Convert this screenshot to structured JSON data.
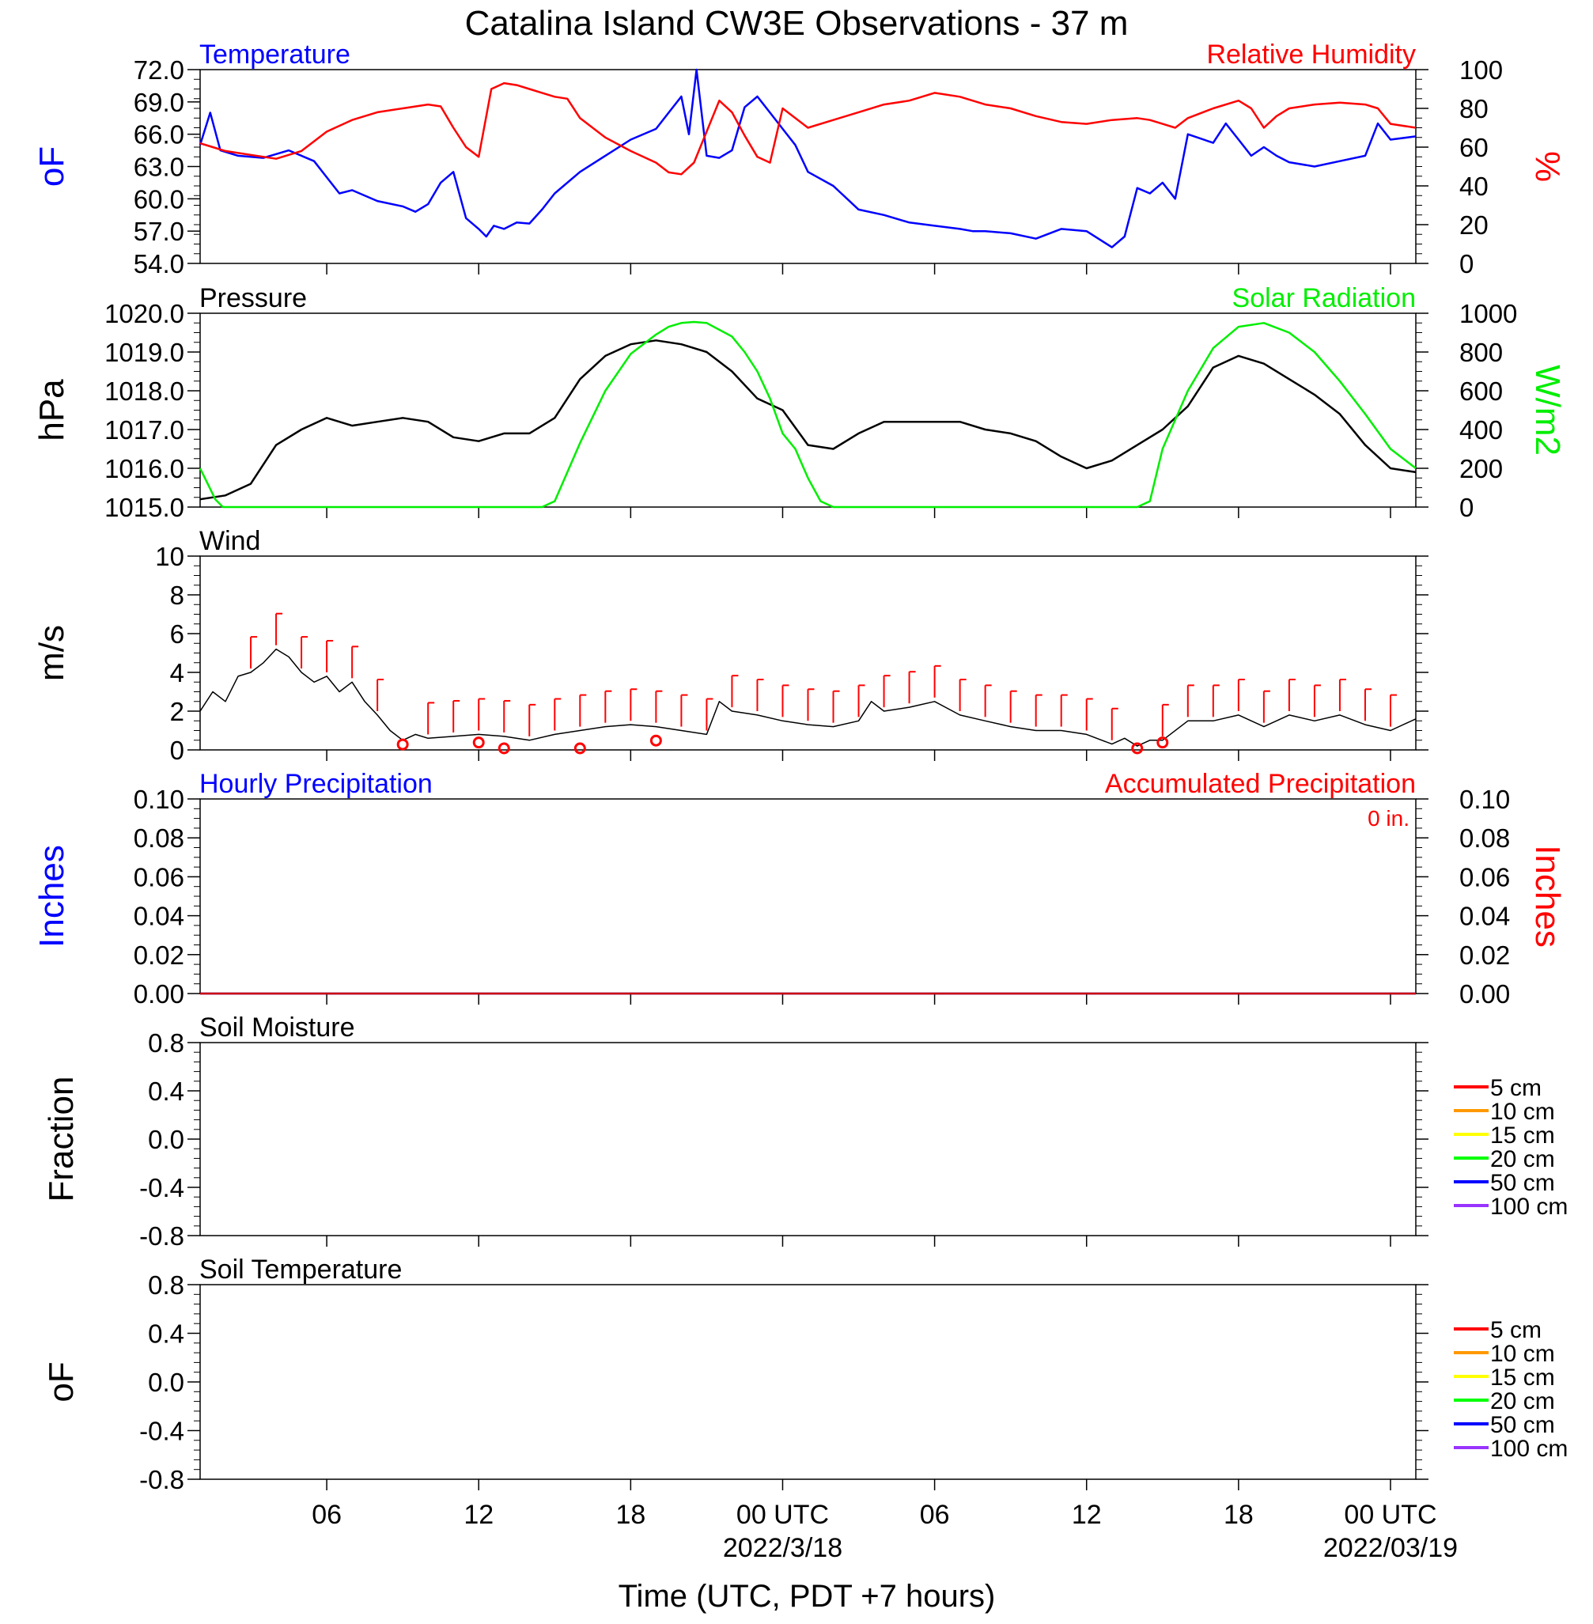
{
  "title": "Catalina Island CW3E Observations - 37 m",
  "x_axis": {
    "label": "Time (UTC, PDT +7 hours)",
    "range_hours": [
      0,
      48
    ],
    "ticks": [
      {
        "hour": 5,
        "label": "06",
        "date": ""
      },
      {
        "hour": 11,
        "label": "12",
        "date": ""
      },
      {
        "hour": 17,
        "label": "18",
        "date": ""
      },
      {
        "hour": 23,
        "label": "00 UTC",
        "date": "2022/3/18"
      },
      {
        "hour": 29,
        "label": "06",
        "date": ""
      },
      {
        "hour": 35,
        "label": "12",
        "date": ""
      },
      {
        "hour": 41,
        "label": "18",
        "date": ""
      },
      {
        "hour": 47,
        "label": "00 UTC",
        "date": "2022/03/19"
      }
    ]
  },
  "chart_data": [
    {
      "type": "line",
      "panel": "temperature-humidity",
      "left_title": "Temperature",
      "right_title": "Relative Humidity",
      "ylabel_left": "oF",
      "ylabel_right": "%",
      "ylim_left": [
        54,
        72
      ],
      "ylim_right": [
        0,
        100
      ],
      "yticks_left": [
        "72.0",
        "69.0",
        "66.0",
        "63.0",
        "60.0",
        "57.0",
        "54.0"
      ],
      "yticks_right": [
        "100",
        "80",
        "60",
        "40",
        "20",
        "0"
      ],
      "series": [
        {
          "name": "Temperature",
          "axis": "left",
          "color": "#0000ff",
          "x": [
            0,
            0.4,
            0.8,
            1.5,
            2.5,
            3.5,
            4.5,
            5,
            5.5,
            6,
            7,
            8,
            8.5,
            9,
            9.5,
            10,
            10.5,
            11,
            11.3,
            11.6,
            12,
            12.5,
            13,
            13.5,
            14,
            15,
            16,
            17,
            18,
            18.5,
            19,
            19.3,
            19.6,
            20,
            20.5,
            21,
            21.5,
            22,
            22.5,
            23,
            23.5,
            24,
            25,
            26,
            27,
            28,
            29,
            30,
            30.5,
            31,
            32,
            33,
            34,
            35,
            36,
            36.5,
            37,
            37.5,
            38,
            38.5,
            39,
            40,
            40.5,
            41,
            41.5,
            42,
            42.5,
            43,
            44,
            45,
            46,
            46.5,
            47,
            48
          ],
          "y": [
            65,
            68,
            64.5,
            64,
            63.8,
            64.5,
            63.5,
            62,
            60.5,
            60.8,
            59.8,
            59.3,
            58.8,
            59.5,
            61.5,
            62.5,
            58.2,
            57.2,
            56.5,
            57.5,
            57.2,
            57.8,
            57.7,
            59,
            60.5,
            62.5,
            64,
            65.5,
            66.5,
            68,
            69.5,
            66,
            72,
            64,
            63.8,
            64.5,
            68.5,
            69.5,
            68,
            66.5,
            65,
            62.5,
            61.2,
            59,
            58.5,
            57.8,
            57.5,
            57.2,
            57,
            57,
            56.8,
            56.3,
            57.2,
            57,
            55.5,
            56.5,
            61,
            60.5,
            61.5,
            60,
            66,
            65.2,
            67,
            65.5,
            64,
            64.8,
            64,
            63.4,
            63,
            63.5,
            64,
            67,
            65.5,
            65.8
          ]
        },
        {
          "name": "Relative Humidity",
          "axis": "right",
          "color": "#ff0000",
          "x": [
            0,
            0.5,
            1,
            2,
            3,
            4,
            5,
            6,
            7,
            8,
            9,
            9.5,
            10,
            10.5,
            11,
            11.5,
            12,
            12.5,
            13,
            13.5,
            14,
            14.5,
            15,
            16,
            17,
            18,
            18.5,
            19,
            19.5,
            20,
            20.5,
            21,
            21.5,
            22,
            22.5,
            23,
            24,
            25,
            26,
            27,
            28,
            29,
            30,
            30.5,
            31,
            32,
            33,
            34,
            35,
            36,
            37,
            37.5,
            38,
            38.5,
            39,
            40,
            41,
            41.5,
            42,
            42.5,
            43,
            44,
            45,
            46,
            46.5,
            47,
            48
          ],
          "y": [
            62,
            60,
            58,
            56,
            54,
            58,
            68,
            74,
            78,
            80,
            82,
            81,
            70,
            60,
            55,
            90,
            93,
            92,
            90,
            88,
            86,
            85,
            75,
            65,
            58,
            52,
            47,
            46,
            52,
            68,
            84,
            78,
            66,
            55,
            52,
            80,
            70,
            74,
            78,
            82,
            84,
            88,
            86,
            84,
            82,
            80,
            76,
            73,
            72,
            74,
            75,
            74,
            72,
            70,
            75,
            80,
            84,
            80,
            70,
            76,
            80,
            82,
            83,
            82,
            80,
            72,
            70
          ]
        },
        {
          "name": "Relative Humidity (alt)",
          "axis": "right",
          "color": "#ff0000",
          "x": [],
          "y": []
        }
      ]
    },
    {
      "type": "line",
      "panel": "pressure-solar",
      "left_title": "Pressure",
      "right_title": "Solar Radiation",
      "ylabel_left": "hPa",
      "ylabel_right": "W/m2",
      "ylim_left": [
        1015,
        1020
      ],
      "ylim_right": [
        0,
        1000
      ],
      "yticks_left": [
        "1020.0",
        "1019.0",
        "1018.0",
        "1017.0",
        "1016.0",
        "1015.0"
      ],
      "yticks_right": [
        "1000",
        "800",
        "600",
        "400",
        "200",
        "0"
      ],
      "series": [
        {
          "name": "Pressure",
          "axis": "left",
          "color": "#000000",
          "x": [
            0,
            1,
            2,
            3,
            4,
            5,
            6,
            7,
            8,
            9,
            10,
            11,
            12,
            13,
            14,
            15,
            16,
            17,
            18,
            19,
            20,
            21,
            22,
            23,
            24,
            25,
            26,
            27,
            28,
            29,
            30,
            31,
            32,
            33,
            34,
            35,
            36,
            37,
            38,
            39,
            40,
            41,
            42,
            43,
            44,
            45,
            46,
            47,
            48
          ],
          "y": [
            1015.2,
            1015.3,
            1015.6,
            1016.6,
            1017.0,
            1017.3,
            1017.1,
            1017.2,
            1017.3,
            1017.2,
            1016.8,
            1016.7,
            1016.9,
            1016.9,
            1017.3,
            1018.3,
            1018.9,
            1019.2,
            1019.3,
            1019.2,
            1019.0,
            1018.5,
            1017.8,
            1017.5,
            1016.6,
            1016.5,
            1016.9,
            1017.2,
            1017.2,
            1017.2,
            1017.2,
            1017.0,
            1016.9,
            1016.7,
            1016.3,
            1016.0,
            1016.2,
            1016.6,
            1017.0,
            1017.6,
            1018.6,
            1018.9,
            1018.7,
            1018.3,
            1017.9,
            1017.4,
            1016.6,
            1016.0,
            1015.9
          ]
        },
        {
          "name": "Solar Radiation",
          "axis": "right",
          "color": "#00ee00",
          "x": [
            0,
            0.3,
            0.6,
            0.9,
            13.5,
            14,
            15,
            16,
            17,
            18,
            18.5,
            19,
            19.5,
            20,
            21,
            21.5,
            22,
            22.5,
            23,
            23.5,
            24,
            24.5,
            25,
            26,
            37,
            37.5,
            38,
            39,
            40,
            41,
            42,
            43,
            44,
            45,
            46,
            47,
            48
          ],
          "y": [
            200,
            120,
            40,
            0,
            0,
            30,
            330,
            600,
            790,
            890,
            930,
            950,
            955,
            950,
            880,
            800,
            700,
            560,
            380,
            300,
            150,
            30,
            0,
            0,
            0,
            30,
            300,
            600,
            820,
            930,
            950,
            900,
            800,
            650,
            480,
            300,
            200
          ]
        }
      ]
    },
    {
      "type": "line",
      "panel": "wind",
      "left_title": "Wind",
      "ylabel_left": "m/s",
      "ylim_left": [
        0,
        10
      ],
      "yticks_left": [
        "10",
        "8",
        "6",
        "4",
        "2",
        "0"
      ],
      "series": [
        {
          "name": "Wind",
          "axis": "left",
          "color": "#000000",
          "x": [
            0,
            0.5,
            1,
            1.5,
            2,
            2.5,
            3,
            3.5,
            4,
            4.5,
            5,
            5.5,
            6,
            6.5,
            7,
            7.5,
            8,
            8.5,
            9,
            10,
            11,
            12,
            13,
            14,
            15,
            16,
            17,
            18,
            19,
            20,
            20.5,
            21,
            22,
            23,
            24,
            25,
            26,
            26.5,
            27,
            28,
            29,
            30,
            31,
            32,
            33,
            34,
            35,
            36,
            36.5,
            37,
            37.5,
            38,
            39,
            40,
            41,
            42,
            43,
            44,
            45,
            46,
            47,
            48
          ],
          "y": [
            2,
            3,
            2.5,
            3.8,
            4,
            4.5,
            5.2,
            4.8,
            4,
            3.5,
            3.8,
            3,
            3.5,
            2.5,
            1.8,
            1,
            0.5,
            0.8,
            0.6,
            0.7,
            0.8,
            0.7,
            0.5,
            0.8,
            1,
            1.2,
            1.3,
            1.2,
            1,
            0.8,
            2.5,
            2,
            1.8,
            1.5,
            1.3,
            1.2,
            1.5,
            2.5,
            2,
            2.2,
            2.5,
            1.8,
            1.5,
            1.2,
            1,
            1,
            0.8,
            0.3,
            0.6,
            0.2,
            0.5,
            0.5,
            1.5,
            1.5,
            1.8,
            1.2,
            1.8,
            1.5,
            1.8,
            1.3,
            1,
            1.6
          ]
        }
      ],
      "wind_barbs_hours": [
        2,
        3,
        4,
        5,
        6,
        7,
        9,
        10,
        11,
        12,
        13,
        14,
        15,
        16,
        17,
        18,
        19,
        20,
        21,
        22,
        23,
        24,
        25,
        26,
        27,
        28,
        29,
        30,
        31,
        32,
        33,
        34,
        35,
        36,
        38,
        39,
        40,
        41,
        42,
        43,
        44,
        45,
        46,
        47
      ],
      "calm_circles": [
        {
          "hour": 8,
          "value": 0.2
        },
        {
          "hour": 11,
          "value": 0.3
        },
        {
          "hour": 12,
          "value": 0
        },
        {
          "hour": 15,
          "value": 0
        },
        {
          "hour": 18,
          "value": 0.4
        },
        {
          "hour": 37,
          "value": 0
        },
        {
          "hour": 38,
          "value": 0.3
        }
      ]
    },
    {
      "type": "line",
      "panel": "precipitation",
      "left_title": "Hourly Precipitation",
      "right_title": "Accumulated Precipitation",
      "annotation": "0 in.",
      "ylabel_left": "Inches",
      "ylabel_right": "Inches",
      "ylim_left": [
        0,
        0.1
      ],
      "ylim_right": [
        0,
        0.1
      ],
      "yticks_left": [
        "0.10",
        "0.08",
        "0.06",
        "0.04",
        "0.02",
        "0.00"
      ],
      "yticks_right": [
        "0.10",
        "0.08",
        "0.06",
        "0.04",
        "0.02",
        "0.00"
      ],
      "series": [
        {
          "name": "Hourly Precipitation",
          "axis": "left",
          "color": "#0000ff",
          "x": [
            0,
            48
          ],
          "y": [
            0,
            0
          ]
        },
        {
          "name": "Accumulated Precipitation",
          "axis": "right",
          "color": "#cc0000",
          "x": [
            0,
            48
          ],
          "y": [
            0,
            0
          ]
        }
      ]
    },
    {
      "type": "line",
      "panel": "soil-moisture",
      "left_title": "Soil Moisture",
      "ylabel_left": "Fraction",
      "ylim_left": [
        -1,
        1
      ],
      "yticks_left": [
        "0.8",
        "0.4",
        "0.0",
        "-0.4",
        "-0.8"
      ],
      "legend": [
        {
          "label": "5 cm",
          "color": "#ff0000"
        },
        {
          "label": "10 cm",
          "color": "#ff9900"
        },
        {
          "label": "15 cm",
          "color": "#ffff00"
        },
        {
          "label": "20 cm",
          "color": "#00ff00"
        },
        {
          "label": "50 cm",
          "color": "#0000ff"
        },
        {
          "label": "100 cm",
          "color": "#9933ff"
        }
      ],
      "series": []
    },
    {
      "type": "line",
      "panel": "soil-temperature",
      "left_title": "Soil Temperature",
      "ylabel_left": "oF",
      "ylim_left": [
        -1,
        1
      ],
      "yticks_left": [
        "0.8",
        "0.4",
        "0.0",
        "-0.4",
        "-0.8"
      ],
      "legend": [
        {
          "label": "5 cm",
          "color": "#ff0000"
        },
        {
          "label": "10 cm",
          "color": "#ff9900"
        },
        {
          "label": "15 cm",
          "color": "#ffff00"
        },
        {
          "label": "20 cm",
          "color": "#00ff00"
        },
        {
          "label": "50 cm",
          "color": "#0000ff"
        },
        {
          "label": "100 cm",
          "color": "#9933ff"
        }
      ],
      "series": []
    }
  ]
}
